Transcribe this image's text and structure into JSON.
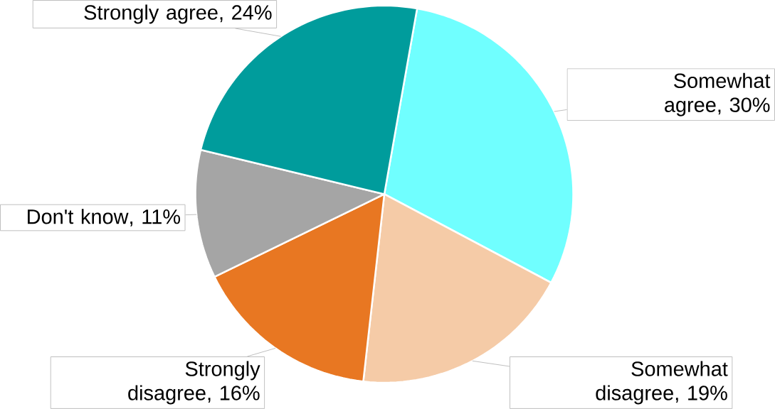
{
  "chart_data": {
    "type": "pie",
    "categories": [
      "Somewhat agree",
      "Somewhat disagree",
      "Strongly disagree",
      "Don't know",
      "Strongly agree"
    ],
    "values": [
      30,
      19,
      16,
      11,
      24
    ],
    "value_labels": [
      ", 30%",
      ", 19%",
      ", 16%",
      ", 11%",
      ", 24%"
    ],
    "colors": [
      "#70ffff",
      "#f5cba7",
      "#e87722",
      "#a5a5a5",
      "#009c9c"
    ]
  }
}
